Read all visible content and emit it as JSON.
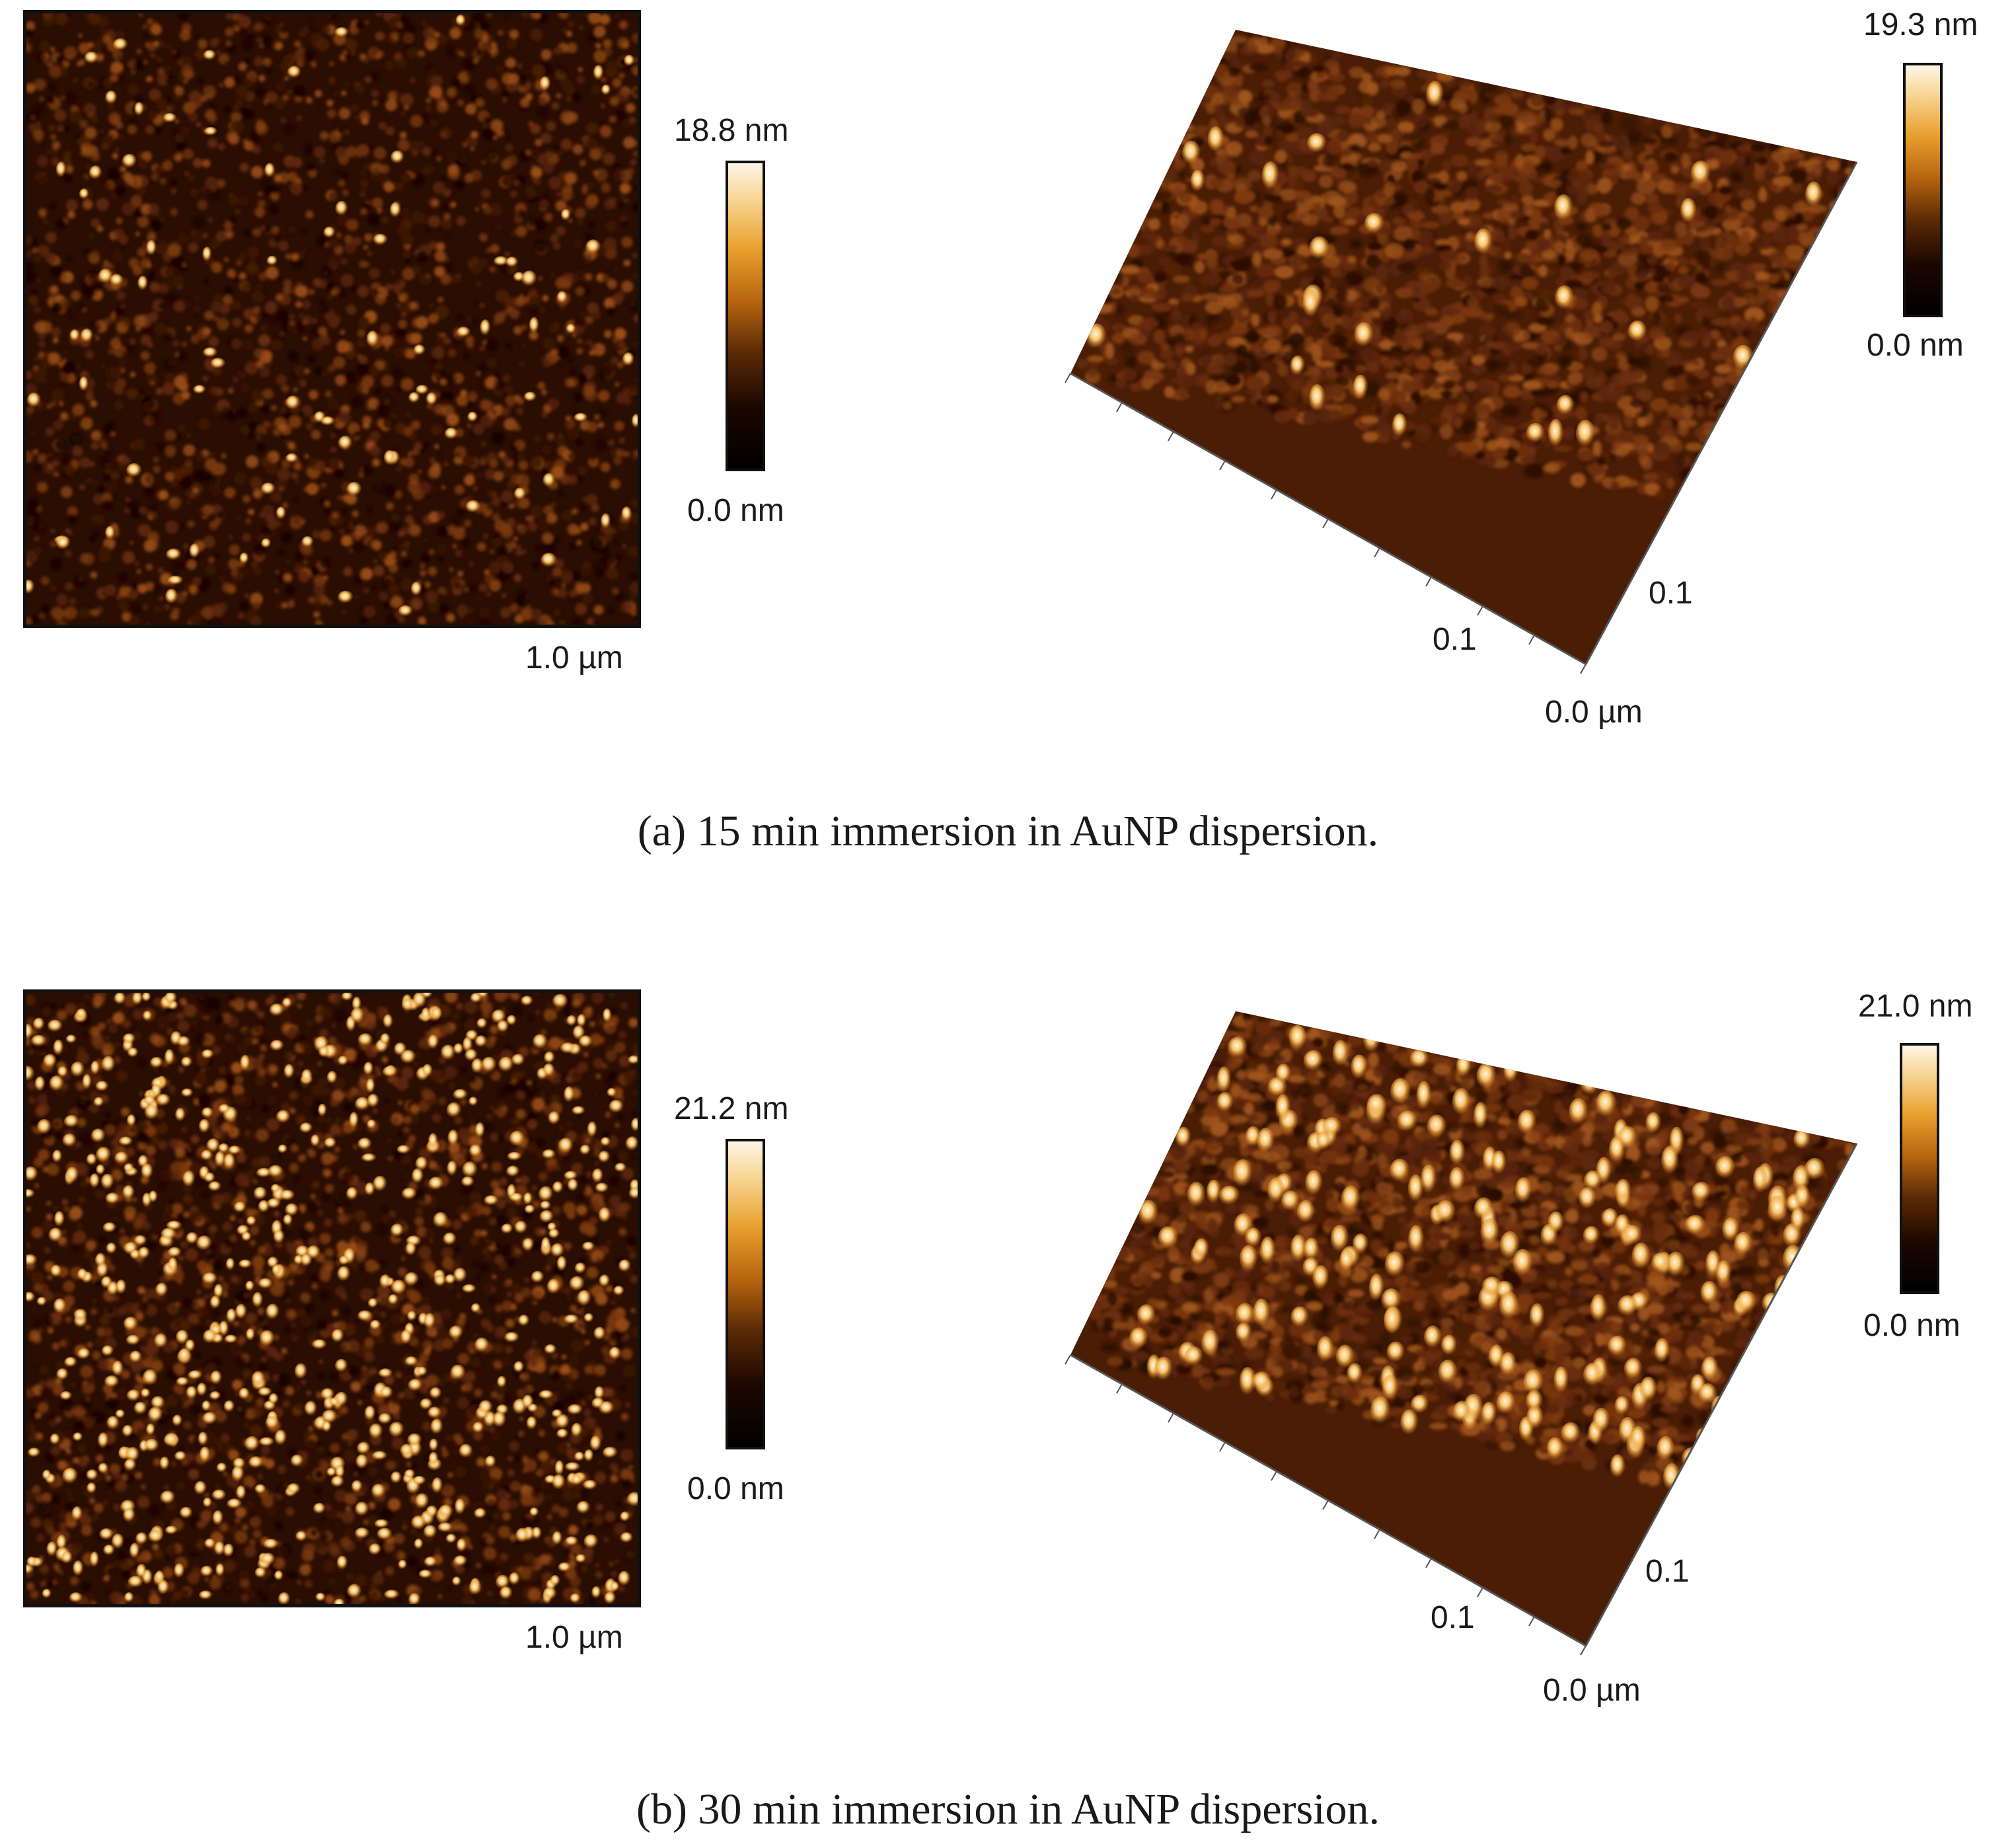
{
  "panel_a": {
    "map2d": {
      "scan_size_label": "1.0 µm",
      "particle_density": "sparse"
    },
    "scale_2d": {
      "max_label": "18.8 nm",
      "min_label": "0.0 nm"
    },
    "view3d": {
      "axis_label_front": "0.1",
      "axis_label_right": "0.1",
      "origin_label": "0.0 µm"
    },
    "scale_3d": {
      "max_label": "19.3 nm",
      "min_label": "0.0 nm"
    },
    "caption": "(a) 15 min immersion in AuNP dispersion."
  },
  "panel_b": {
    "map2d": {
      "scan_size_label": "1.0 µm",
      "particle_density": "dense"
    },
    "scale_2d": {
      "max_label": "21.2 nm",
      "min_label": "0.0 nm"
    },
    "view3d": {
      "axis_label_front": "0.1",
      "axis_label_right": "0.1",
      "origin_label": "0.0 µm"
    },
    "scale_3d": {
      "max_label": "21.0 nm",
      "min_label": "0.0 nm"
    },
    "caption": "(b) 30 min immersion in AuNP dispersion."
  },
  "colors": {
    "colormap_dark": "#1c0700",
    "colormap_mid": "#b8650f",
    "colormap_bright": "#fff5e6",
    "substrate": "#3a1502"
  }
}
